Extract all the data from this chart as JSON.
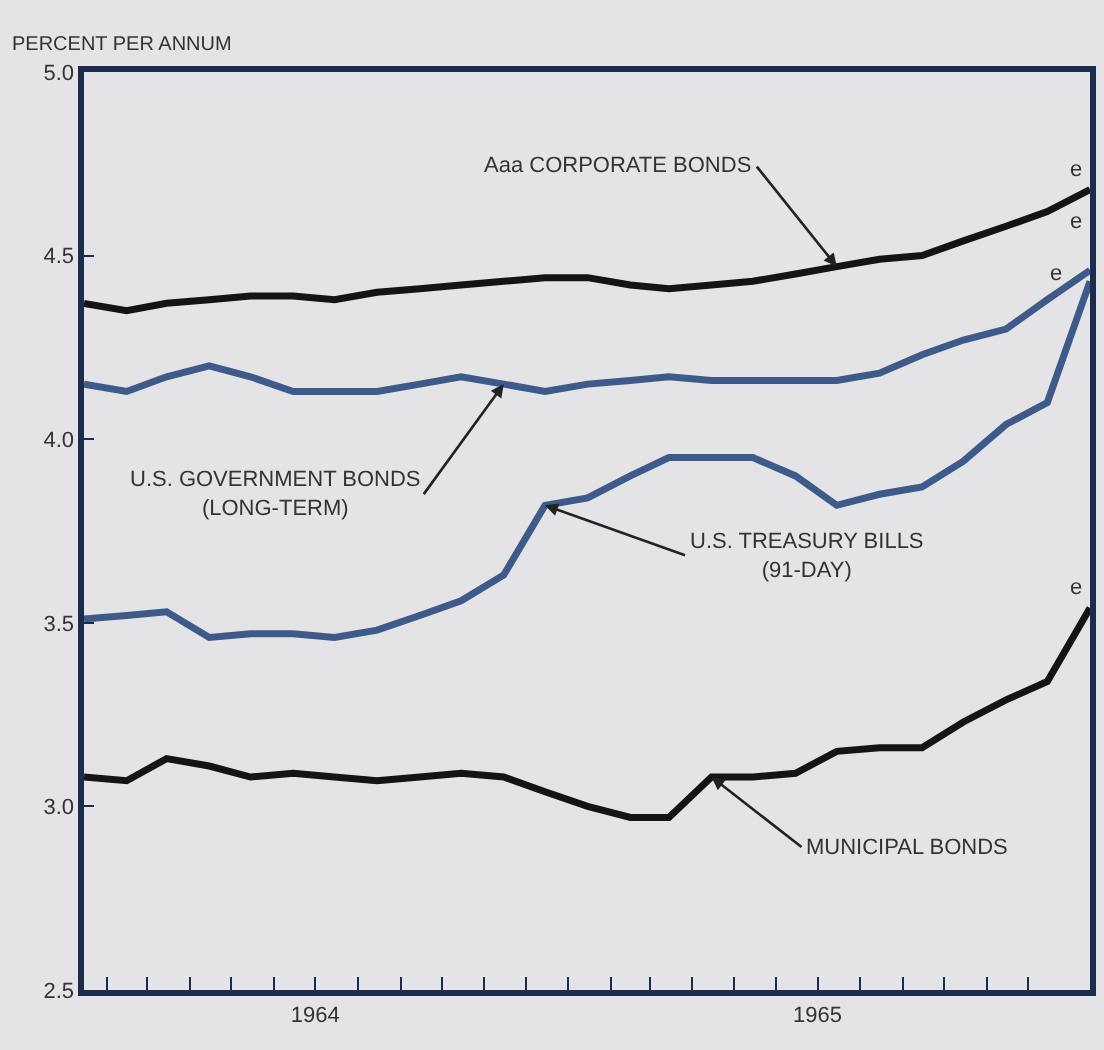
{
  "chart_data": {
    "type": "line",
    "ylabel": "PERCENT PER ANNUM",
    "x": [
      "1964-01-15",
      "1964-02-15",
      "1964-03-15",
      "1964-04-15",
      "1964-05-15",
      "1964-06-15",
      "1964-07-15",
      "1964-08-15",
      "1964-09-15",
      "1964-10-15",
      "1964-11-15",
      "1964-12-15",
      "1965-01-15",
      "1965-02-15",
      "1965-03-15",
      "1965-04-15",
      "1965-05-15",
      "1965-06-15",
      "1965-07-15",
      "1965-08-15",
      "1965-09-15",
      "1965-10-15",
      "1965-11-15",
      "1965-12-15",
      "1966-01-15"
    ],
    "series": [
      {
        "name": "Aaa CORPORATE BONDS",
        "color": "#141414",
        "values": [
          4.37,
          4.35,
          4.37,
          4.38,
          4.39,
          4.39,
          4.38,
          4.4,
          4.41,
          4.42,
          4.43,
          4.44,
          4.44,
          4.42,
          4.41,
          4.42,
          4.43,
          4.45,
          4.47,
          4.49,
          4.5,
          4.54,
          4.58,
          4.62,
          4.68
        ]
      },
      {
        "name": "U.S. GOVERNMENT BONDS\n(LONG-TERM)",
        "color": "#3d5a8a",
        "values": [
          4.15,
          4.13,
          4.17,
          4.2,
          4.17,
          4.13,
          4.13,
          4.13,
          4.15,
          4.17,
          4.15,
          4.13,
          4.15,
          4.16,
          4.17,
          4.16,
          4.16,
          4.16,
          4.16,
          4.18,
          4.23,
          4.27,
          4.3,
          4.38,
          4.46
        ]
      },
      {
        "name": "U.S. TREASURY BILLS\n(91-DAY)",
        "color": "#3d5a8a",
        "values": [
          3.51,
          3.52,
          3.53,
          3.46,
          3.47,
          3.47,
          3.46,
          3.48,
          3.52,
          3.56,
          3.63,
          3.82,
          3.84,
          3.9,
          3.95,
          3.95,
          3.95,
          3.9,
          3.82,
          3.85,
          3.87,
          3.94,
          4.04,
          4.1,
          4.43
        ]
      },
      {
        "name": "MUNICIPAL BONDS",
        "color": "#141414",
        "values": [
          3.08,
          3.07,
          3.13,
          3.11,
          3.08,
          3.09,
          3.08,
          3.07,
          3.08,
          3.09,
          3.08,
          3.04,
          3.0,
          2.97,
          2.97,
          3.08,
          3.08,
          3.09,
          3.15,
          3.16,
          3.16,
          3.23,
          3.29,
          3.34,
          3.54
        ]
      }
    ],
    "annotations": [
      {
        "text": "e",
        "x": "1966-01-15",
        "y": 4.68
      },
      {
        "text": "e",
        "x": "1966-01-15",
        "y": 4.46
      },
      {
        "text": "e",
        "x": "1966-01-15",
        "y": 4.43
      },
      {
        "text": "e",
        "x": "1966-01-15",
        "y": 3.54
      }
    ],
    "xlim": [
      "1964-01-15",
      "1966-01-15"
    ],
    "xticks": [
      {
        "value": "1964-02-01",
        "label": null
      },
      {
        "value": "1964-03-01",
        "label": null
      },
      {
        "value": "1964-04-01",
        "label": null
      },
      {
        "value": "1964-05-01",
        "label": null
      },
      {
        "value": "1964-06-01",
        "label": null
      },
      {
        "value": "1964-07-01",
        "label": "1964"
      },
      {
        "value": "1964-08-01",
        "label": null
      },
      {
        "value": "1964-09-01",
        "label": null
      },
      {
        "value": "1964-10-01",
        "label": null
      },
      {
        "value": "1964-11-01",
        "label": null
      },
      {
        "value": "1964-12-01",
        "label": null
      },
      {
        "value": "1965-01-01",
        "label": null
      },
      {
        "value": "1965-02-01",
        "label": null
      },
      {
        "value": "1965-03-01",
        "label": null
      },
      {
        "value": "1965-04-01",
        "label": null
      },
      {
        "value": "1965-05-01",
        "label": null
      },
      {
        "value": "1965-06-01",
        "label": null
      },
      {
        "value": "1965-07-01",
        "label": "1965"
      },
      {
        "value": "1965-08-01",
        "label": null
      },
      {
        "value": "1965-09-01",
        "label": null
      },
      {
        "value": "1965-10-01",
        "label": null
      },
      {
        "value": "1965-11-01",
        "label": null
      },
      {
        "value": "1965-12-01",
        "label": null
      }
    ],
    "ylim": [
      2.5,
      5.0
    ],
    "yticks": [
      2.5,
      {
        "value": 3,
        "label": "3.0"
      },
      3.5,
      {
        "value": 4,
        "label": "4.0"
      },
      4.5,
      {
        "value": 5,
        "label": "5.0"
      }
    ],
    "grid": false,
    "legend": false,
    "marker": "none",
    "line_style": "solid"
  }
}
